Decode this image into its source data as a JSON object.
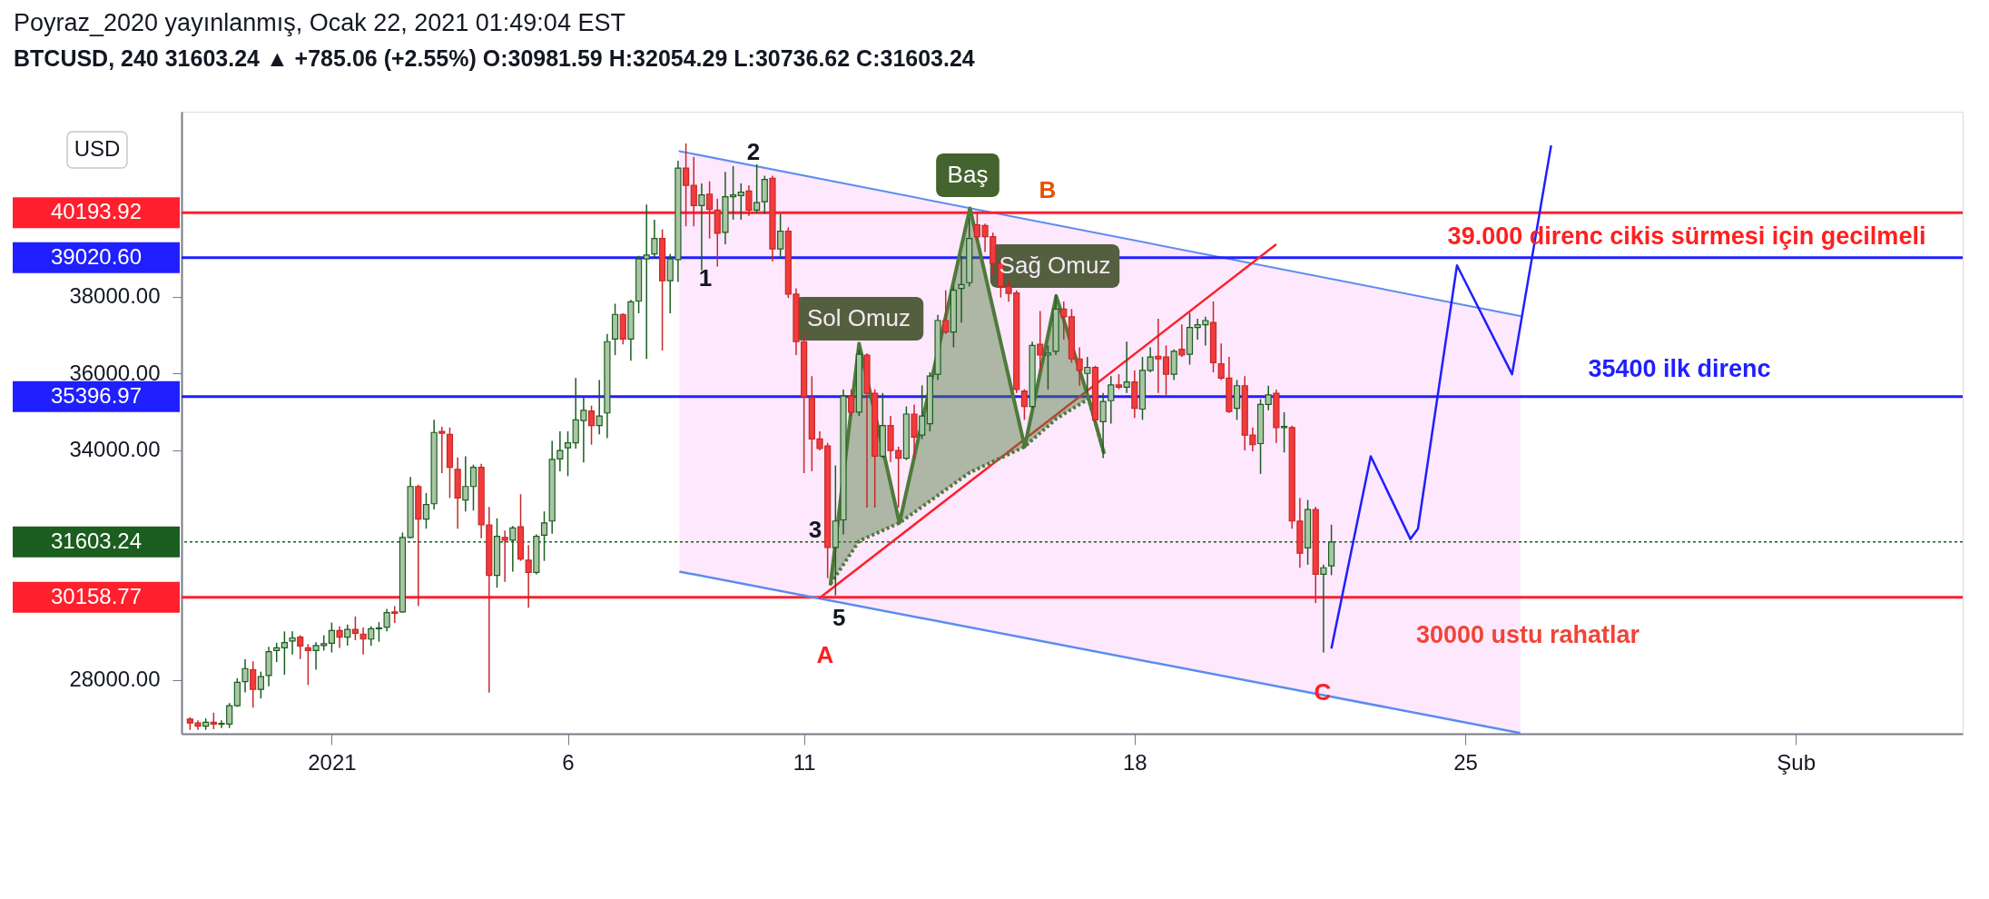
{
  "chart_data": {
    "type": "candlestick",
    "title": "Poyraz_2020 yayınlanmış, Ocak 22, 2021 01:49:04 EST",
    "subtitle": "BTCUSD, 240  31603.24 ▲ +785.06 (+2.55%)  O:30981.59  H:32054.29  L:30736.62  C:31603.24",
    "x": [
      "2020-12-29T00:00",
      "2020-12-29T04:00",
      "2020-12-29T08:00",
      "2020-12-29T12:00",
      "2020-12-29T16:00",
      "2020-12-29T20:00",
      "2020-12-30T00:00",
      "2020-12-30T04:00",
      "2020-12-30T08:00",
      "2020-12-30T12:00",
      "2020-12-30T16:00",
      "2020-12-30T20:00",
      "2020-12-31T00:00",
      "2020-12-31T04:00",
      "2020-12-31T08:00",
      "2020-12-31T12:00",
      "2020-12-31T16:00",
      "2020-12-31T20:00",
      "2021-01-01T00:00",
      "2021-01-01T04:00",
      "2021-01-01T08:00",
      "2021-01-01T12:00",
      "2021-01-01T16:00",
      "2021-01-01T20:00",
      "2021-01-02T00:00",
      "2021-01-02T04:00",
      "2021-01-02T08:00",
      "2021-01-02T12:00",
      "2021-01-02T16:00",
      "2021-01-02T20:00",
      "2021-01-03T00:00",
      "2021-01-03T04:00",
      "2021-01-03T08:00",
      "2021-01-03T12:00",
      "2021-01-03T16:00",
      "2021-01-03T20:00",
      "2021-01-04T00:00",
      "2021-01-04T04:00",
      "2021-01-04T08:00",
      "2021-01-04T12:00",
      "2021-01-04T16:00",
      "2021-01-04T20:00",
      "2021-01-05T00:00",
      "2021-01-05T04:00",
      "2021-01-05T08:00",
      "2021-01-05T12:00",
      "2021-01-05T16:00",
      "2021-01-05T20:00",
      "2021-01-06T00:00",
      "2021-01-06T04:00",
      "2021-01-06T08:00",
      "2021-01-06T12:00",
      "2021-01-06T16:00",
      "2021-01-06T20:00",
      "2021-01-07T00:00",
      "2021-01-07T04:00",
      "2021-01-07T08:00",
      "2021-01-07T12:00",
      "2021-01-07T16:00",
      "2021-01-07T20:00",
      "2021-01-08T00:00",
      "2021-01-08T04:00",
      "2021-01-08T08:00",
      "2021-01-08T12:00",
      "2021-01-08T16:00",
      "2021-01-08T20:00",
      "2021-01-09T00:00",
      "2021-01-09T04:00",
      "2021-01-09T08:00",
      "2021-01-09T12:00",
      "2021-01-09T16:00",
      "2021-01-09T20:00",
      "2021-01-10T00:00",
      "2021-01-10T04:00",
      "2021-01-10T08:00",
      "2021-01-10T12:00",
      "2021-01-10T16:00",
      "2021-01-10T20:00",
      "2021-01-11T00:00",
      "2021-01-11T04:00",
      "2021-01-11T08:00",
      "2021-01-11T12:00",
      "2021-01-11T16:00",
      "2021-01-11T20:00",
      "2021-01-12T00:00",
      "2021-01-12T04:00",
      "2021-01-12T08:00",
      "2021-01-12T12:00",
      "2021-01-12T16:00",
      "2021-01-12T20:00",
      "2021-01-13T00:00",
      "2021-01-13T04:00",
      "2021-01-13T08:00",
      "2021-01-13T12:00",
      "2021-01-13T16:00",
      "2021-01-13T20:00",
      "2021-01-14T00:00",
      "2021-01-14T04:00",
      "2021-01-14T08:00",
      "2021-01-14T12:00",
      "2021-01-14T16:00",
      "2021-01-14T20:00",
      "2021-01-15T00:00",
      "2021-01-15T04:00",
      "2021-01-15T08:00",
      "2021-01-15T12:00",
      "2021-01-15T16:00",
      "2021-01-15T20:00",
      "2021-01-16T00:00",
      "2021-01-16T04:00",
      "2021-01-16T08:00",
      "2021-01-16T12:00",
      "2021-01-16T16:00",
      "2021-01-16T20:00",
      "2021-01-17T00:00",
      "2021-01-17T04:00",
      "2021-01-17T08:00",
      "2021-01-17T12:00",
      "2021-01-17T16:00",
      "2021-01-17T20:00",
      "2021-01-18T00:00",
      "2021-01-18T04:00",
      "2021-01-18T08:00",
      "2021-01-18T12:00",
      "2021-01-18T16:00",
      "2021-01-18T20:00",
      "2021-01-19T00:00",
      "2021-01-19T04:00",
      "2021-01-19T08:00",
      "2021-01-19T12:00",
      "2021-01-19T16:00",
      "2021-01-19T20:00",
      "2021-01-20T00:00",
      "2021-01-20T04:00",
      "2021-01-20T08:00",
      "2021-01-20T12:00",
      "2021-01-20T16:00",
      "2021-01-20T20:00",
      "2021-01-21T00:00",
      "2021-01-21T04:00",
      "2021-01-21T08:00",
      "2021-01-21T12:00",
      "2021-01-21T16:00",
      "2021-01-21T20:00",
      "2021-01-22T00:00",
      "2021-01-22T04:00"
    ],
    "ohlc": [
      [
        26980,
        27030,
        26700,
        26880
      ],
      [
        26880,
        26950,
        26700,
        26800
      ],
      [
        26800,
        27000,
        26700,
        26900
      ],
      [
        26900,
        27150,
        26720,
        26850
      ],
      [
        26850,
        26950,
        26750,
        26870
      ],
      [
        26850,
        27400,
        26750,
        27330
      ],
      [
        27330,
        28050,
        27300,
        27940
      ],
      [
        27960,
        28540,
        27680,
        28300
      ],
      [
        28270,
        28490,
        27280,
        27760
      ],
      [
        27760,
        28220,
        27520,
        28090
      ],
      [
        28120,
        28870,
        27840,
        28740
      ],
      [
        28770,
        28970,
        28470,
        28840
      ],
      [
        28840,
        29270,
        28140,
        28980
      ],
      [
        29020,
        29270,
        28670,
        29100
      ],
      [
        29120,
        29170,
        28550,
        28890
      ],
      [
        28840,
        28940,
        27870,
        28770
      ],
      [
        28770,
        28990,
        28270,
        28900
      ],
      [
        28900,
        29170,
        28770,
        28950
      ],
      [
        28960,
        29500,
        28720,
        29290
      ],
      [
        29290,
        29400,
        28840,
        29120
      ],
      [
        29120,
        29450,
        28900,
        29320
      ],
      [
        29320,
        29660,
        29040,
        29220
      ],
      [
        29200,
        29370,
        28670,
        29070
      ],
      [
        29070,
        29400,
        28900,
        29340
      ],
      [
        29340,
        29510,
        29000,
        29360
      ],
      [
        29380,
        29860,
        29270,
        29760
      ],
      [
        29780,
        29930,
        29490,
        29740
      ],
      [
        29780,
        31850,
        29760,
        31720
      ],
      [
        31720,
        33300,
        31700,
        33050
      ],
      [
        33050,
        33100,
        29930,
        32200
      ],
      [
        32200,
        32880,
        31950,
        32580
      ],
      [
        32600,
        34790,
        32450,
        34460
      ],
      [
        34490,
        34610,
        33400,
        34440
      ],
      [
        34410,
        34590,
        32750,
        33550
      ],
      [
        33500,
        33810,
        31950,
        32750
      ],
      [
        32700,
        33840,
        32400,
        33050
      ],
      [
        33050,
        33620,
        32420,
        33550
      ],
      [
        33550,
        33640,
        31700,
        32050
      ],
      [
        32050,
        32520,
        27670,
        30730
      ],
      [
        30730,
        32220,
        30410,
        31750
      ],
      [
        31720,
        31900,
        30560,
        31650
      ],
      [
        31650,
        32020,
        30830,
        31970
      ],
      [
        32000,
        32850,
        31110,
        31160
      ],
      [
        31130,
        31520,
        29890,
        30810
      ],
      [
        30810,
        31800,
        30760,
        31750
      ],
      [
        31780,
        32400,
        31110,
        32100
      ],
      [
        32150,
        34240,
        31820,
        33760
      ],
      [
        33770,
        34490,
        33450,
        33990
      ],
      [
        34060,
        34490,
        33320,
        34190
      ],
      [
        34190,
        35880,
        34040,
        34790
      ],
      [
        34770,
        35390,
        33680,
        35040
      ],
      [
        35020,
        35160,
        34140,
        34640
      ],
      [
        34640,
        35830,
        34410,
        34890
      ],
      [
        34970,
        37030,
        34310,
        36830
      ],
      [
        36900,
        37820,
        36480,
        37540
      ],
      [
        37540,
        37570,
        36760,
        36900
      ],
      [
        36900,
        37920,
        36330,
        37870
      ],
      [
        37890,
        39070,
        37570,
        38990
      ],
      [
        38990,
        40410,
        36380,
        39090
      ],
      [
        39120,
        40010,
        39020,
        39520
      ],
      [
        39520,
        39760,
        36600,
        38420
      ],
      [
        38420,
        39120,
        37570,
        38990
      ],
      [
        38970,
        41550,
        38390,
        41360
      ],
      [
        41360,
        42000,
        39840,
        40910
      ],
      [
        40910,
        41650,
        39840,
        40380
      ],
      [
        40380,
        40960,
        38690,
        40660
      ],
      [
        40680,
        41010,
        39520,
        40280
      ],
      [
        40260,
        40560,
        38790,
        39660
      ],
      [
        39680,
        41260,
        39370,
        40610
      ],
      [
        40610,
        41410,
        40010,
        40660
      ],
      [
        40640,
        40960,
        40010,
        40730
      ],
      [
        40760,
        40910,
        40110,
        40260
      ],
      [
        40260,
        41460,
        40180,
        40460
      ],
      [
        40480,
        41160,
        40160,
        41060
      ],
      [
        41090,
        41160,
        38920,
        39250
      ],
      [
        39250,
        40160,
        39020,
        39710
      ],
      [
        39710,
        39810,
        37970,
        38070
      ],
      [
        38070,
        38220,
        36480,
        36830
      ],
      [
        36830,
        37080,
        33400,
        35390
      ],
      [
        35370,
        35930,
        33450,
        34290
      ],
      [
        34290,
        34490,
        33990,
        34040
      ],
      [
        34110,
        34190,
        30660,
        31460
      ],
      [
        31460,
        33600,
        30210,
        32150
      ],
      [
        32180,
        35580,
        31800,
        35410
      ],
      [
        35410,
        35590,
        34890,
        34990
      ],
      [
        34990,
        36630,
        34890,
        36500
      ],
      [
        36480,
        36530,
        32500,
        35480
      ],
      [
        35480,
        35590,
        32500,
        33840
      ],
      [
        33840,
        35490,
        33790,
        34640
      ],
      [
        34640,
        34890,
        33690,
        33990
      ],
      [
        33990,
        34090,
        32500,
        33790
      ],
      [
        33790,
        35140,
        33740,
        34940
      ],
      [
        34940,
        35190,
        33790,
        34340
      ],
      [
        34390,
        35690,
        34290,
        34890
      ],
      [
        34690,
        36030,
        34490,
        35930
      ],
      [
        35980,
        37530,
        35830,
        37380
      ],
      [
        37380,
        38170,
        37030,
        37080
      ],
      [
        37080,
        38270,
        36680,
        38170
      ],
      [
        38220,
        39070,
        37330,
        38320
      ],
      [
        38370,
        40060,
        38270,
        39520
      ],
      [
        39880,
        40210,
        39470,
        39570
      ],
      [
        39860,
        39910,
        39170,
        39570
      ],
      [
        39570,
        39670,
        38570,
        38870
      ],
      [
        38870,
        38970,
        37980,
        38270
      ],
      [
        38270,
        38470,
        37870,
        38090
      ],
      [
        38100,
        38170,
        35490,
        35580
      ],
      [
        35540,
        35590,
        34790,
        35140
      ],
      [
        35140,
        36830,
        35090,
        36730
      ],
      [
        36760,
        37630,
        36080,
        36480
      ],
      [
        36480,
        36730,
        35580,
        36530
      ],
      [
        36580,
        38070,
        36480,
        37680
      ],
      [
        37680,
        37880,
        36880,
        37480
      ],
      [
        37480,
        37680,
        36280,
        36380
      ],
      [
        36380,
        36680,
        35680,
        36080
      ],
      [
        36000,
        36430,
        35490,
        36160
      ],
      [
        36160,
        36200,
        34740,
        34790
      ],
      [
        34740,
        35490,
        33790,
        35270
      ],
      [
        35290,
        35930,
        34690,
        35700
      ],
      [
        35700,
        35980,
        35590,
        35640
      ],
      [
        35640,
        36830,
        35490,
        35780
      ],
      [
        35780,
        36080,
        34840,
        35090
      ],
      [
        35070,
        36430,
        34790,
        36080
      ],
      [
        36080,
        36680,
        36030,
        36430
      ],
      [
        36450,
        37430,
        35490,
        36380
      ],
      [
        36430,
        36730,
        35440,
        35980
      ],
      [
        35980,
        36630,
        35830,
        36580
      ],
      [
        36630,
        37280,
        36430,
        36480
      ],
      [
        36500,
        37580,
        36230,
        37200
      ],
      [
        37200,
        37430,
        36880,
        37270
      ],
      [
        37270,
        37480,
        36730,
        37380
      ],
      [
        37330,
        37880,
        36030,
        36280
      ],
      [
        36250,
        36780,
        35830,
        35880
      ],
      [
        35880,
        36430,
        34970,
        35010
      ],
      [
        35090,
        35830,
        34790,
        35680
      ],
      [
        35680,
        35930,
        33990,
        34390
      ],
      [
        34390,
        34590,
        33970,
        34140
      ],
      [
        34170,
        35330,
        33380,
        35190
      ],
      [
        35190,
        35680,
        35040,
        35440
      ],
      [
        35480,
        35580,
        34190,
        34590
      ],
      [
        34590,
        34990,
        33940,
        34620
      ],
      [
        34590,
        34640,
        31950,
        32150
      ],
      [
        32150,
        32750,
        30930,
        31310
      ],
      [
        31450,
        32700,
        31010,
        32450
      ],
      [
        32450,
        32520,
        30010,
        30760
      ],
      [
        30760,
        31010,
        28720,
        30930
      ],
      [
        30981.59,
        32054.29,
        30736.62,
        31603.24
      ]
    ],
    "series": [
      {
        "type": "line",
        "color": "#5b8def",
        "x": [
          "2021-01-08T08:40",
          "2021-01-26T04:00"
        ],
        "values": [
          41800,
          37500
        ],
        "upper": [
          41800,
          37500
        ],
        "lower": [
          30830,
          26620
        ]
      },
      {
        "type": "line",
        "color": "#5a8cee",
        "x": [
          "2021-01-08T08:40",
          "2021-01-26T04:00"
        ],
        "values": [
          30830,
          26620
        ]
      },
      {
        "type": "line",
        "color": "#ff1f2d",
        "x": [
          "2021-01-11T07:40",
          "2021-01-21T00:00"
        ],
        "values": [
          30130,
          39370
        ]
      },
      {
        "type": "line",
        "color": "#4e7a3a",
        "x": [
          "2021-01-11T13:30",
          "2021-01-12T04:00",
          "2021-01-13T00:30",
          "2021-01-14T12:20",
          "2021-01-15T16:10",
          "2021-01-16T08:10",
          "2021-01-17T00:40",
          "2021-01-17T08:20"
        ],
        "values": [
          30510,
          36780,
          32100,
          40310,
          34090,
          38020,
          35340,
          33940
        ],
        "upper": [
          30510,
          36780,
          32100,
          40310,
          34090,
          38020,
          35340,
          33940
        ],
        "lower": [
          30510,
          31630,
          32100,
          33420,
          34090,
          34820,
          35340,
          33940
        ]
      },
      {
        "type": "line",
        "color": "#1f1fff",
        "x": [
          "2021-01-22T04:00",
          "2021-01-23T00:00",
          "2021-01-23T20:10",
          "2021-01-24T00:00",
          "2021-01-24T19:50",
          "2021-01-25T23:50",
          "2021-01-26T19:40"
        ],
        "values": [
          28820,
          33840,
          31680,
          31950,
          38820,
          35980,
          41950
        ]
      }
    ],
    "xlim": [
      "2020-12-28T22:00",
      "2021-02-04T10:30"
    ],
    "xticks": [
      {
        "value": "2021-01-01",
        "label": "2021"
      },
      {
        "value": "2021-01-06",
        "label": "6"
      },
      {
        "value": "2021-01-11",
        "label": "11"
      },
      {
        "value": "2021-01-18",
        "label": "18"
      },
      {
        "value": "2021-01-25",
        "label": "25"
      },
      {
        "value": "2021-02-01",
        "label": "Şub"
      }
    ],
    "ylim": [
      26600,
      42830
    ],
    "yticks": [
      {
        "value": 28000,
        "label": "28000.00"
      },
      {
        "value": 34000,
        "label": "34000.00"
      },
      {
        "value": 36000,
        "label": "36000.00"
      },
      {
        "value": 38000,
        "label": "38000.00"
      }
    ],
    "ref_lines": [
      {
        "axis": "y",
        "value": 40193.92,
        "label": "40193.92",
        "color": "#ff1f2d"
      },
      {
        "axis": "y",
        "value": 39020.6,
        "label": "39020.60",
        "color": "#1f1fff"
      },
      {
        "axis": "y",
        "value": 35396.97,
        "label": "35396.97",
        "color": "#1f1fff"
      },
      {
        "axis": "y",
        "value": 31603.24,
        "label": "31603.24",
        "color": "#1b5e20",
        "line_style": "dotted"
      },
      {
        "axis": "y",
        "value": 30158.77,
        "label": "30158.77",
        "color": "#ff1f2d"
      }
    ],
    "annotations": [
      "1",
      "2",
      "3",
      {
        "text": "5",
        "x": "2021-01-11T07:40",
        "y": 30130
      },
      "A",
      "B",
      "C",
      "Baş",
      "Sol Omuz",
      "Sağ Omuz",
      "39.000 direnc cikis sürmesi için gecilmeli",
      "35400 ilk direnc",
      "30000 ustu rahatlar",
      "USD"
    ]
  }
}
